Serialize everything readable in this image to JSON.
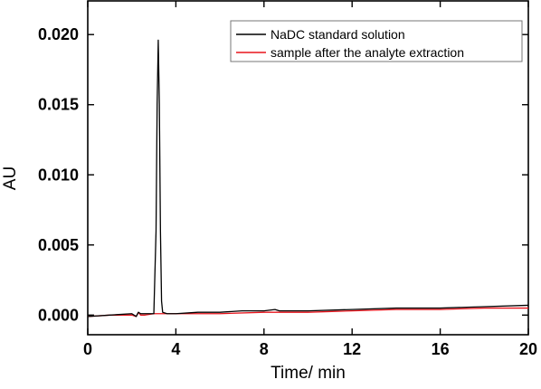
{
  "chart_data": {
    "type": "line",
    "xlabel": "Time/ min",
    "ylabel": "AU",
    "xlim": [
      0,
      20
    ],
    "ylim": [
      -0.0014,
      0.0224
    ],
    "x_ticks": [
      0,
      4,
      8,
      12,
      16,
      20
    ],
    "x_tick_labels": [
      "0",
      "4",
      "8",
      "12",
      "16",
      "20"
    ],
    "y_ticks": [
      0.0,
      0.005,
      0.01,
      0.015,
      0.02
    ],
    "y_tick_labels": [
      "0.000",
      "0.005",
      "0.010",
      "0.015",
      "0.020"
    ],
    "grid": false,
    "legend_position": "top-right",
    "series": [
      {
        "name": "NaDC standard solution",
        "color": "#000000",
        "x": [
          0,
          1,
          2,
          2.2,
          2.3,
          2.4,
          2.6,
          3.0,
          3.1,
          3.15,
          3.2,
          3.25,
          3.3,
          3.35,
          3.4,
          3.6,
          4,
          5,
          6,
          7,
          8,
          8.5,
          8.7,
          9,
          10,
          12,
          14,
          16,
          18,
          20
        ],
        "y": [
          -0.0001,
          0.0,
          0.0001,
          -0.0001,
          0.0002,
          0.0001,
          0.0001,
          0.0001,
          0.006,
          0.015,
          0.0196,
          0.015,
          0.006,
          0.001,
          0.0002,
          0.0001,
          0.0001,
          0.0002,
          0.0002,
          0.0003,
          0.0003,
          0.0004,
          0.0003,
          0.0003,
          0.0003,
          0.0004,
          0.0005,
          0.0005,
          0.0006,
          0.0007
        ]
      },
      {
        "name": "sample after the analyte extraction",
        "color": "#e8141c",
        "x": [
          0,
          1,
          2,
          2.2,
          2.3,
          2.4,
          2.6,
          3,
          4,
          6,
          8,
          10,
          12,
          14,
          16,
          18,
          20
        ],
        "y": [
          -0.0001,
          0.0,
          0.0,
          -0.0001,
          0.0002,
          0.0,
          0.0,
          0.0001,
          0.0001,
          0.0001,
          0.0002,
          0.0002,
          0.0003,
          0.0004,
          0.0004,
          0.0005,
          0.0005
        ]
      }
    ]
  }
}
